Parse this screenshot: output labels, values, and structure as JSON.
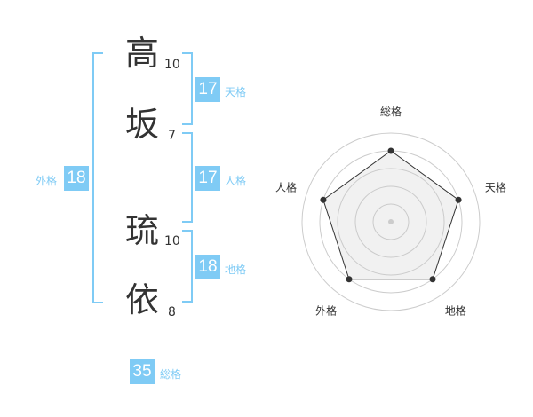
{
  "name_chars": [
    {
      "char": "高",
      "strokes": "10"
    },
    {
      "char": "坂",
      "strokes": "7"
    },
    {
      "char": "琉",
      "strokes": "10"
    },
    {
      "char": "依",
      "strokes": "8"
    }
  ],
  "kakusu": {
    "tenkaku": {
      "label": "天格",
      "value": "17"
    },
    "jinkaku": {
      "label": "人格",
      "value": "17"
    },
    "chikaku": {
      "label": "地格",
      "value": "18"
    },
    "gaikaku": {
      "label": "外格",
      "value": "18"
    },
    "soukaku": {
      "label": "総格",
      "value": "35"
    }
  },
  "colors": {
    "accent": "#7fcbf5",
    "text": "#333333"
  },
  "chart_data": {
    "type": "radar",
    "categories": [
      "総格",
      "天格",
      "地格",
      "外格",
      "人格"
    ],
    "values": [
      4,
      4,
      4,
      4,
      4
    ],
    "rlim": [
      0,
      5
    ],
    "grid": true
  }
}
